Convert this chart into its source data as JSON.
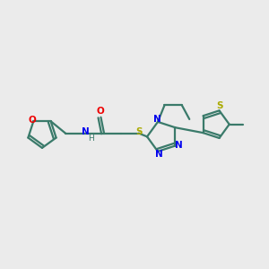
{
  "bg_color": "#ebebeb",
  "bond_color": "#3a7a6a",
  "N_color": "#0000ee",
  "O_color": "#ee0000",
  "S_thio_color": "#aaaa00",
  "S_linker_color": "#aaaa00",
  "lw": 1.6,
  "fig_width": 3.0,
  "fig_height": 3.0,
  "xlim": [
    0,
    10
  ],
  "ylim": [
    0,
    10
  ]
}
